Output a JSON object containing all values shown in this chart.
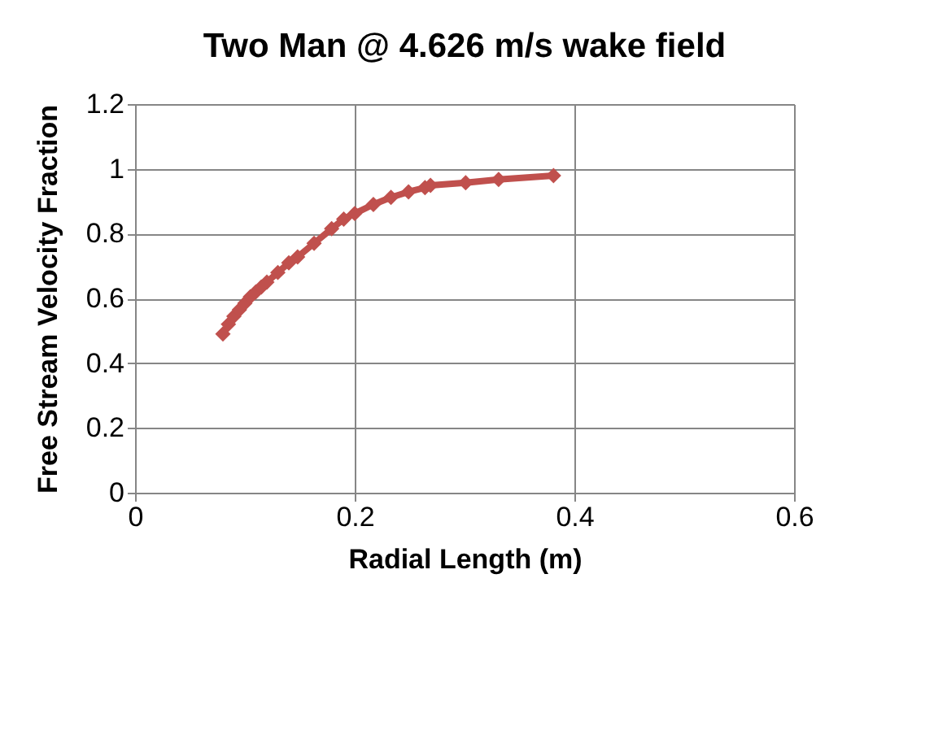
{
  "chart_data": {
    "type": "line",
    "title": "Two Man @ 4.626 m/s wake field",
    "xlabel": "Radial Length (m)",
    "ylabel": "Free Stream Velocity Fraction",
    "series": [
      {
        "color": "#c0504d",
        "x": [
          0.08,
          0.085,
          0.09,
          0.095,
          0.1,
          0.105,
          0.11,
          0.115,
          0.12,
          0.13,
          0.14,
          0.148,
          0.163,
          0.179,
          0.19,
          0.2,
          0.217,
          0.233,
          0.249,
          0.264,
          0.269,
          0.301,
          0.331,
          0.381
        ],
        "values": [
          0.49,
          0.52,
          0.545,
          0.565,
          0.585,
          0.605,
          0.62,
          0.635,
          0.65,
          0.68,
          0.71,
          0.728,
          0.77,
          0.815,
          0.845,
          0.862,
          0.89,
          0.912,
          0.929,
          0.942,
          0.949,
          0.957,
          0.967,
          0.979
        ]
      }
    ],
    "xlim": [
      0,
      0.6
    ],
    "xticks": [
      0,
      0.2,
      0.4,
      0.6
    ],
    "ylim": [
      0,
      1.2
    ],
    "yticks": [
      0,
      0.2,
      0.4,
      0.6,
      0.8,
      1,
      1.2
    ],
    "grid": true,
    "marker": "diamond",
    "line_style": "solid"
  }
}
